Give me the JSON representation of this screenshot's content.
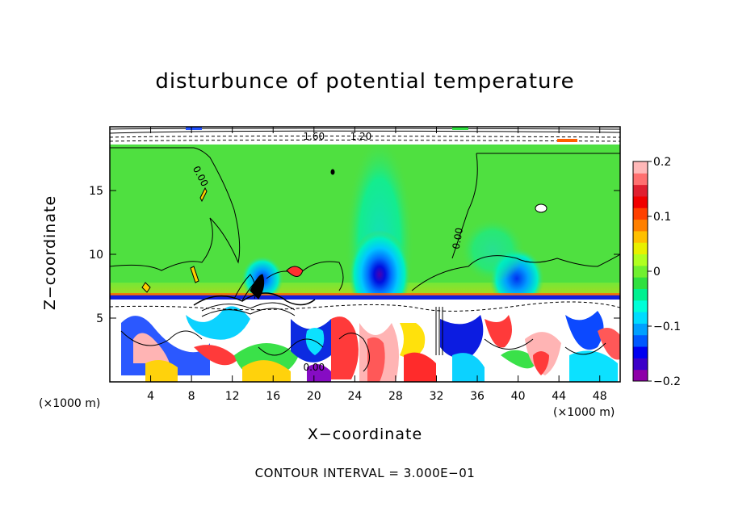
{
  "chart_data": {
    "type": "heatmap",
    "title": "disturbunce of potential temperature",
    "xlabel": "X−coordinate",
    "ylabel": "Z−coordinate",
    "x_unit_left": "(×1000 m)",
    "x_unit_right": "(×1000 m)",
    "contour_note": "CONTOUR INTERVAL = 3.000E−01",
    "xlim": [
      0,
      50
    ],
    "ylim": [
      0,
      20
    ],
    "x_ticks": [
      4,
      8,
      12,
      16,
      20,
      24,
      28,
      32,
      36,
      40,
      44,
      48
    ],
    "x_tick_labels": [
      "4",
      "8",
      "12",
      "16",
      "20",
      "24",
      "28",
      "32",
      "36",
      "40",
      "44",
      "48"
    ],
    "y_ticks": [
      5,
      10,
      15
    ],
    "y_tick_labels": [
      "5",
      "10",
      "15"
    ],
    "colorbar": {
      "range": [
        -0.2,
        0.2
      ],
      "ticks": [
        0.2,
        0.1,
        0,
        -0.1,
        -0.2
      ],
      "tick_labels": [
        "0.2",
        "0.1",
        "0",
        "−0.1",
        "−0.2"
      ],
      "colors": [
        "#8e00a8",
        "#3c00c8",
        "#0000f0",
        "#0058ff",
        "#00a0ff",
        "#00dcff",
        "#00ffd8",
        "#00f090",
        "#30e040",
        "#70f030",
        "#b0ff20",
        "#e8f000",
        "#ffc000",
        "#ff8000",
        "#ff4000",
        "#f00000",
        "#e02030",
        "#ff7070",
        "#ffb8b8"
      ]
    },
    "contour_labels": [
      {
        "text": "0.00",
        "x": 8.6,
        "z": 16.0,
        "rotate": 62
      },
      {
        "text": "0.00",
        "x": 34.4,
        "z": 11.2,
        "rotate": -80
      },
      {
        "text": "1.60",
        "x": 20.0,
        "z": 19.0,
        "rotate": 0
      },
      {
        "text": "1.20",
        "x": 24.6,
        "z": 19.0,
        "rotate": 0
      },
      {
        "text": "0.00",
        "x": 20.0,
        "z": 0.9,
        "rotate": 0
      }
    ],
    "regions": [
      {
        "name": "upper-field",
        "z_range": [
          6.7,
          18.3
        ],
        "value": 0.0
      },
      {
        "name": "central-cold-anomaly",
        "x": 26.5,
        "z": 7.5,
        "value": -0.2
      },
      {
        "name": "cold-anomaly-east",
        "x": 38.5,
        "z": 7.8,
        "value": -0.12
      },
      {
        "name": "cold-anomaly-west",
        "x": 14.5,
        "z": 7.3,
        "value": -0.1
      },
      {
        "name": "stable-layer",
        "z_range": [
          6.2,
          6.7
        ],
        "value": 0.2
      },
      {
        "name": "boundary-layer-turbulence",
        "z_range": [
          0,
          6.2
        ],
        "value_range": [
          -0.2,
          0.2
        ]
      },
      {
        "name": "model-top-layer",
        "z_range": [
          18.3,
          20
        ],
        "value_range": [
          -0.2,
          0.2
        ]
      }
    ]
  }
}
